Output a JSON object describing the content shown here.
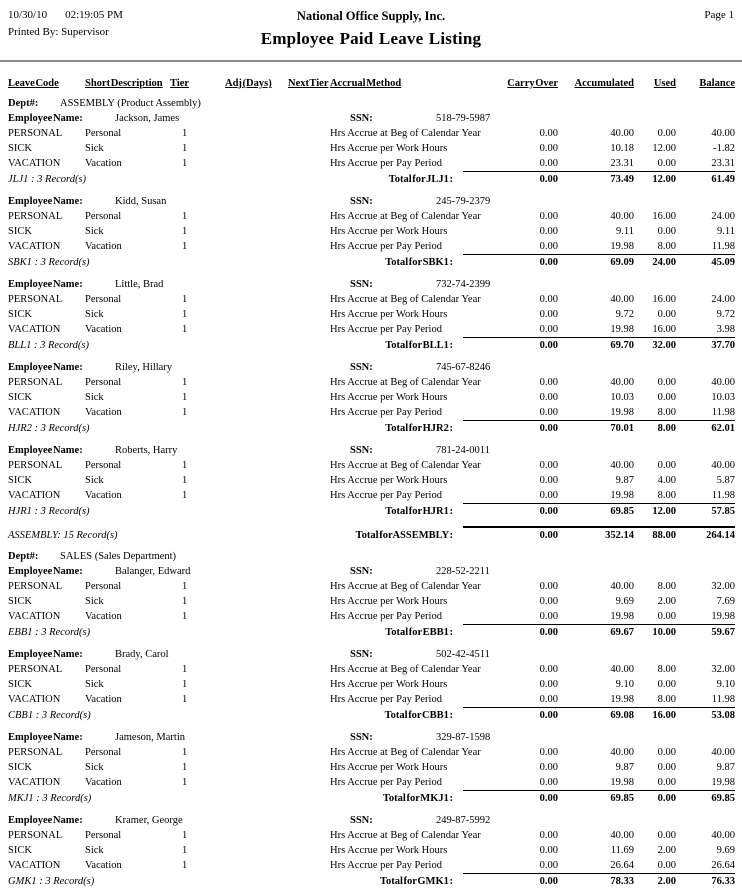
{
  "page_header": {
    "date": "10/30/10",
    "time": "02:19:05 PM",
    "printed_by_label": "Printed By:",
    "printed_by": "Supervisor",
    "company": "National Office Supply, Inc.",
    "title": "Employee Paid Leave Listing",
    "page": "Page 1"
  },
  "columns": {
    "leave_code": "Leave Code",
    "short_description": "Short Description",
    "tier": "Tier",
    "adj_days": "Adj (Days)",
    "next_tier": "Next Tier",
    "accrual_method": "Accrual Method",
    "carry_over": "Carry Over",
    "accumulated": "Accumulated",
    "used": "Used",
    "balance": "Balance"
  },
  "labels": {
    "dept": "Dept#:",
    "employee": "Employee Name:",
    "ssn": "SSN:"
  },
  "departments": [
    {
      "name": "ASSEMBLY (Product Assembly)",
      "employees": [
        {
          "name": "Jackson, James",
          "ssn": "518-79-5987",
          "rows": [
            {
              "code": "PERSONAL",
              "desc": "Personal",
              "tier": "1",
              "method": "Hrs Accrue at Beg of Calendar Year",
              "carry": "0.00",
              "accum": "40.00",
              "used": "0.00",
              "balance": "40.00"
            },
            {
              "code": "SICK",
              "desc": "Sick",
              "tier": "1",
              "method": "Hrs Accrue per Work Hours",
              "carry": "0.00",
              "accum": "10.18",
              "used": "12.00",
              "balance": "-1.82"
            },
            {
              "code": "VACATION",
              "desc": "Vacation",
              "tier": "1",
              "method": "Hrs Accrue per Pay Period",
              "carry": "0.00",
              "accum": "23.31",
              "used": "0.00",
              "balance": "23.31"
            }
          ],
          "note": "JLJ1 : 3 Record(s)",
          "total_label": "Total for JLJ1 :",
          "totals": {
            "carry": "0.00",
            "accum": "73.49",
            "used": "12.00",
            "balance": "61.49"
          }
        },
        {
          "name": "Kidd, Susan",
          "ssn": "245-79-2379",
          "rows": [
            {
              "code": "PERSONAL",
              "desc": "Personal",
              "tier": "1",
              "method": "Hrs Accrue at Beg of Calendar Year",
              "carry": "0.00",
              "accum": "40.00",
              "used": "16.00",
              "balance": "24.00"
            },
            {
              "code": "SICK",
              "desc": "Sick",
              "tier": "1",
              "method": "Hrs Accrue per Work Hours",
              "carry": "0.00",
              "accum": "9.11",
              "used": "0.00",
              "balance": "9.11"
            },
            {
              "code": "VACATION",
              "desc": "Vacation",
              "tier": "1",
              "method": "Hrs Accrue per Pay Period",
              "carry": "0.00",
              "accum": "19.98",
              "used": "8.00",
              "balance": "11.98"
            }
          ],
          "note": "SBK1 : 3 Record(s)",
          "total_label": "Total for SBK1 :",
          "totals": {
            "carry": "0.00",
            "accum": "69.09",
            "used": "24.00",
            "balance": "45.09"
          }
        },
        {
          "name": "Little, Brad",
          "ssn": "732-74-2399",
          "rows": [
            {
              "code": "PERSONAL",
              "desc": "Personal",
              "tier": "1",
              "method": "Hrs Accrue at Beg of Calendar Year",
              "carry": "0.00",
              "accum": "40.00",
              "used": "16.00",
              "balance": "24.00"
            },
            {
              "code": "SICK",
              "desc": "Sick",
              "tier": "1",
              "method": "Hrs Accrue per Work Hours",
              "carry": "0.00",
              "accum": "9.72",
              "used": "0.00",
              "balance": "9.72"
            },
            {
              "code": "VACATION",
              "desc": "Vacation",
              "tier": "1",
              "method": "Hrs Accrue per Pay Period",
              "carry": "0.00",
              "accum": "19.98",
              "used": "16.00",
              "balance": "3.98"
            }
          ],
          "note": "BLL1 : 3 Record(s)",
          "total_label": "Total for BLL1 :",
          "totals": {
            "carry": "0.00",
            "accum": "69.70",
            "used": "32.00",
            "balance": "37.70"
          }
        },
        {
          "name": "Riley, Hillary",
          "ssn": "745-67-8246",
          "rows": [
            {
              "code": "PERSONAL",
              "desc": "Personal",
              "tier": "1",
              "method": "Hrs Accrue at Beg of Calendar Year",
              "carry": "0.00",
              "accum": "40.00",
              "used": "0.00",
              "balance": "40.00"
            },
            {
              "code": "SICK",
              "desc": "Sick",
              "tier": "1",
              "method": "Hrs Accrue per Work Hours",
              "carry": "0.00",
              "accum": "10.03",
              "used": "0.00",
              "balance": "10.03"
            },
            {
              "code": "VACATION",
              "desc": "Vacation",
              "tier": "1",
              "method": "Hrs Accrue per Pay Period",
              "carry": "0.00",
              "accum": "19.98",
              "used": "8.00",
              "balance": "11.98"
            }
          ],
          "note": "HJR2 : 3 Record(s)",
          "total_label": "Total for HJR2 :",
          "totals": {
            "carry": "0.00",
            "accum": "70.01",
            "used": "8.00",
            "balance": "62.01"
          }
        },
        {
          "name": "Roberts, Harry",
          "ssn": "781-24-0011",
          "rows": [
            {
              "code": "PERSONAL",
              "desc": "Personal",
              "tier": "1",
              "method": "Hrs Accrue at Beg of Calendar Year",
              "carry": "0.00",
              "accum": "40.00",
              "used": "0.00",
              "balance": "40.00"
            },
            {
              "code": "SICK",
              "desc": "Sick",
              "tier": "1",
              "method": "Hrs Accrue per Work Hours",
              "carry": "0.00",
              "accum": "9.87",
              "used": "4.00",
              "balance": "5.87"
            },
            {
              "code": "VACATION",
              "desc": "Vacation",
              "tier": "1",
              "method": "Hrs Accrue per Pay Period",
              "carry": "0.00",
              "accum": "19.98",
              "used": "8.00",
              "balance": "11.98"
            }
          ],
          "note": "HJR1 : 3 Record(s)",
          "total_label": "Total for HJR1 :",
          "totals": {
            "carry": "0.00",
            "accum": "69.85",
            "used": "12.00",
            "balance": "57.85"
          }
        }
      ],
      "dept_note": "ASSEMBLY: 15 Record(s)",
      "dept_total_label": "Total for ASSEMBLY :",
      "dept_totals": {
        "carry": "0.00",
        "accum": "352.14",
        "used": "88.00",
        "balance": "264.14"
      }
    },
    {
      "name": "SALES (Sales Department)",
      "employees": [
        {
          "name": "Balanger, Edward",
          "ssn": "228-52-2211",
          "rows": [
            {
              "code": "PERSONAL",
              "desc": "Personal",
              "tier": "1",
              "method": "Hrs Accrue at Beg of Calendar Year",
              "carry": "0.00",
              "accum": "40.00",
              "used": "8.00",
              "balance": "32.00"
            },
            {
              "code": "SICK",
              "desc": "Sick",
              "tier": "1",
              "method": "Hrs Accrue per Work Hours",
              "carry": "0.00",
              "accum": "9.69",
              "used": "2.00",
              "balance": "7.69"
            },
            {
              "code": "VACATION",
              "desc": "Vacation",
              "tier": "1",
              "method": "Hrs Accrue per Pay Period",
              "carry": "0.00",
              "accum": "19.98",
              "used": "0.00",
              "balance": "19.98"
            }
          ],
          "note": "EBB1 : 3 Record(s)",
          "total_label": "Total for EBB1 :",
          "totals": {
            "carry": "0.00",
            "accum": "69.67",
            "used": "10.00",
            "balance": "59.67"
          }
        },
        {
          "name": "Brady, Carol",
          "ssn": "502-42-4511",
          "rows": [
            {
              "code": "PERSONAL",
              "desc": "Personal",
              "tier": "1",
              "method": "Hrs Accrue at Beg of Calendar Year",
              "carry": "0.00",
              "accum": "40.00",
              "used": "8.00",
              "balance": "32.00"
            },
            {
              "code": "SICK",
              "desc": "Sick",
              "tier": "1",
              "method": "Hrs Accrue per Work Hours",
              "carry": "0.00",
              "accum": "9.10",
              "used": "0.00",
              "balance": "9.10"
            },
            {
              "code": "VACATION",
              "desc": "Vacation",
              "tier": "1",
              "method": "Hrs Accrue per Pay Period",
              "carry": "0.00",
              "accum": "19.98",
              "used": "8.00",
              "balance": "11.98"
            }
          ],
          "note": "CBB1 : 3 Record(s)",
          "total_label": "Total for CBB1 :",
          "totals": {
            "carry": "0.00",
            "accum": "69.08",
            "used": "16.00",
            "balance": "53.08"
          }
        },
        {
          "name": "Jameson, Martin",
          "ssn": "329-87-1598",
          "rows": [
            {
              "code": "PERSONAL",
              "desc": "Personal",
              "tier": "1",
              "method": "Hrs Accrue at Beg of Calendar Year",
              "carry": "0.00",
              "accum": "40.00",
              "used": "0.00",
              "balance": "40.00"
            },
            {
              "code": "SICK",
              "desc": "Sick",
              "tier": "1",
              "method": "Hrs Accrue per Work Hours",
              "carry": "0.00",
              "accum": "9.87",
              "used": "0.00",
              "balance": "9.87"
            },
            {
              "code": "VACATION",
              "desc": "Vacation",
              "tier": "1",
              "method": "Hrs Accrue per Pay Period",
              "carry": "0.00",
              "accum": "19.98",
              "used": "0.00",
              "balance": "19.98"
            }
          ],
          "note": "MKJ1 : 3 Record(s)",
          "total_label": "Total for MKJ1 :",
          "totals": {
            "carry": "0.00",
            "accum": "69.85",
            "used": "0.00",
            "balance": "69.85"
          }
        },
        {
          "name": "Kramer, George",
          "ssn": "249-87-5992",
          "rows": [
            {
              "code": "PERSONAL",
              "desc": "Personal",
              "tier": "1",
              "method": "Hrs Accrue at Beg of Calendar Year",
              "carry": "0.00",
              "accum": "40.00",
              "used": "0.00",
              "balance": "40.00"
            },
            {
              "code": "SICK",
              "desc": "Sick",
              "tier": "1",
              "method": "Hrs Accrue per Work Hours",
              "carry": "0.00",
              "accum": "11.69",
              "used": "2.00",
              "balance": "9.69"
            },
            {
              "code": "VACATION",
              "desc": "Vacation",
              "tier": "1",
              "method": "Hrs Accrue per Pay Period",
              "carry": "0.00",
              "accum": "26.64",
              "used": "0.00",
              "balance": "26.64"
            }
          ],
          "note": "GMK1 : 3 Record(s)",
          "total_label": "Total for GMK1 :",
          "totals": {
            "carry": "0.00",
            "accum": "78.33",
            "used": "2.00",
            "balance": "76.33"
          }
        }
      ]
    }
  ]
}
